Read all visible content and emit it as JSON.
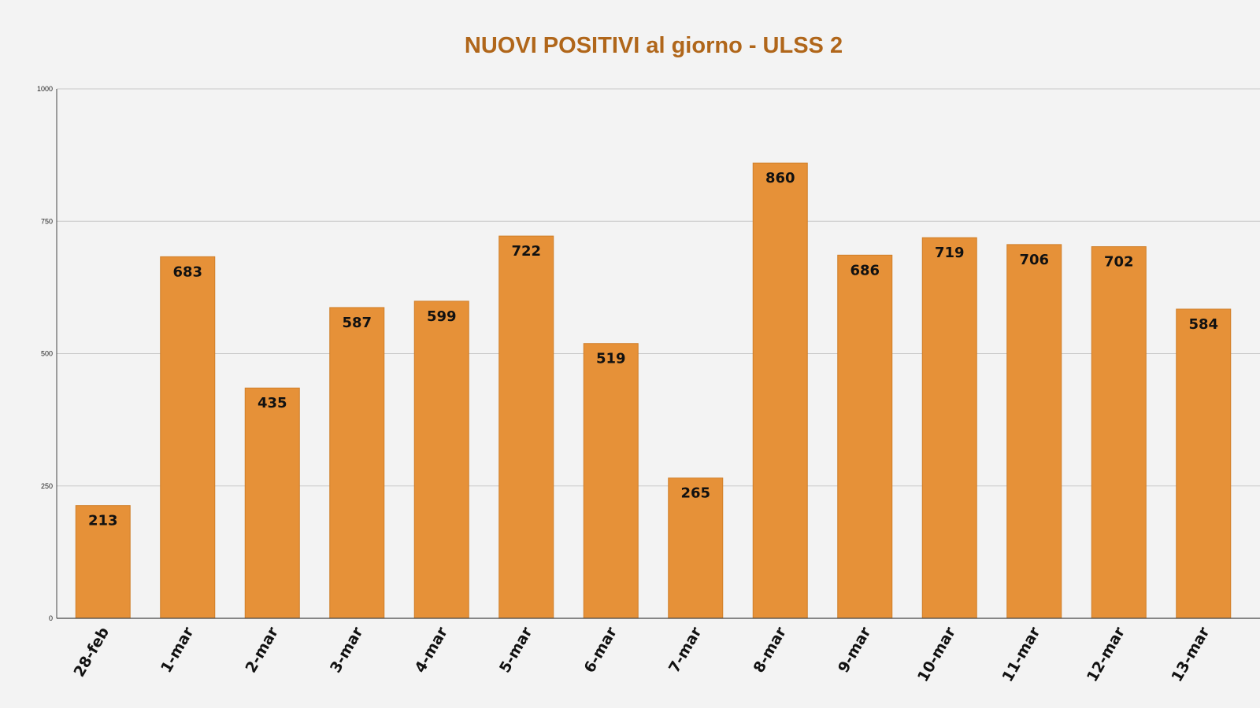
{
  "chart_data": {
    "type": "bar",
    "title": "NUOVI POSITIVI al giorno - ULSS 2",
    "xlabel": "",
    "ylabel": "",
    "categories": [
      "28-feb",
      "1-mar",
      "2-mar",
      "3-mar",
      "4-mar",
      "5-mar",
      "6-mar",
      "7-mar",
      "8-mar",
      "9-mar",
      "10-mar",
      "11-mar",
      "12-mar",
      "13-mar"
    ],
    "values": [
      213,
      683,
      435,
      587,
      599,
      722,
      519,
      265,
      860,
      686,
      719,
      706,
      702,
      584
    ],
    "ylim": [
      0,
      1000
    ],
    "yticks": [
      0,
      250,
      500,
      750,
      1000
    ],
    "grid": true,
    "legend": "none",
    "data_labels": true,
    "colors": {
      "bar": "#e69138",
      "bar_edge": "#d07e28",
      "title": "#b0661a",
      "grid": "#c8c8c8",
      "axis": "#444444",
      "background": "#f3f3f3"
    }
  }
}
